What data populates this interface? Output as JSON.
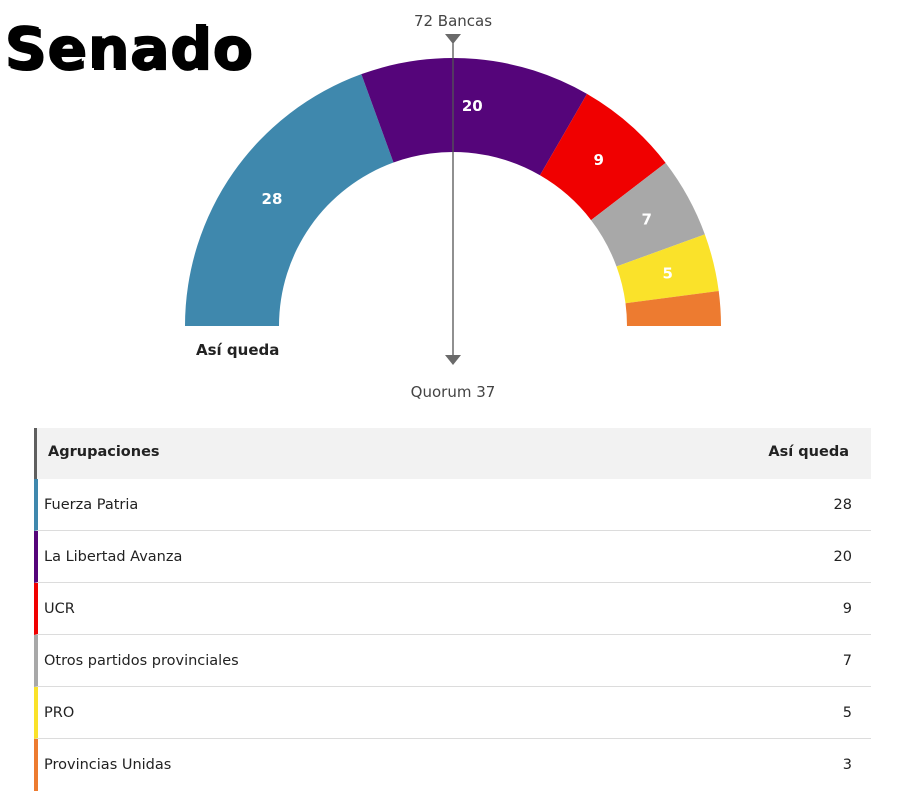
{
  "title": "Senado",
  "chart_data": {
    "type": "pie",
    "style": "semicircle-parliament",
    "total_label": "72 Bancas",
    "quorum_label": "Quorum 37",
    "caption": "Así queda",
    "total": 72,
    "quorum": 37,
    "series": [
      {
        "name": "Fuerza Patria",
        "value": 28,
        "color": "#3f88ad"
      },
      {
        "name": "La Libertad Avanza",
        "value": 20,
        "color": "#55057a"
      },
      {
        "name": "UCR",
        "value": 9,
        "color": "#f00000"
      },
      {
        "name": "Otros partidos provinciales",
        "value": 7,
        "color": "#a8a8a8"
      },
      {
        "name": "PRO",
        "value": 5,
        "color": "#fae22a"
      },
      {
        "name": "Provincias Unidas",
        "value": 3,
        "color": "#ed7b30"
      }
    ]
  },
  "table": {
    "header_name": "Agrupaciones",
    "header_value": "Así queda",
    "rows": [
      {
        "name": "Fuerza Patria",
        "value": "28",
        "color": "#3f88ad"
      },
      {
        "name": "La Libertad Avanza",
        "value": "20",
        "color": "#55057a"
      },
      {
        "name": "UCR",
        "value": "9",
        "color": "#f00000"
      },
      {
        "name": "Otros partidos provinciales",
        "value": "7",
        "color": "#a8a8a8"
      },
      {
        "name": "PRO",
        "value": "5",
        "color": "#fae22a"
      },
      {
        "name": "Provincias Unidas",
        "value": "3",
        "color": "#ed7b30"
      }
    ]
  }
}
